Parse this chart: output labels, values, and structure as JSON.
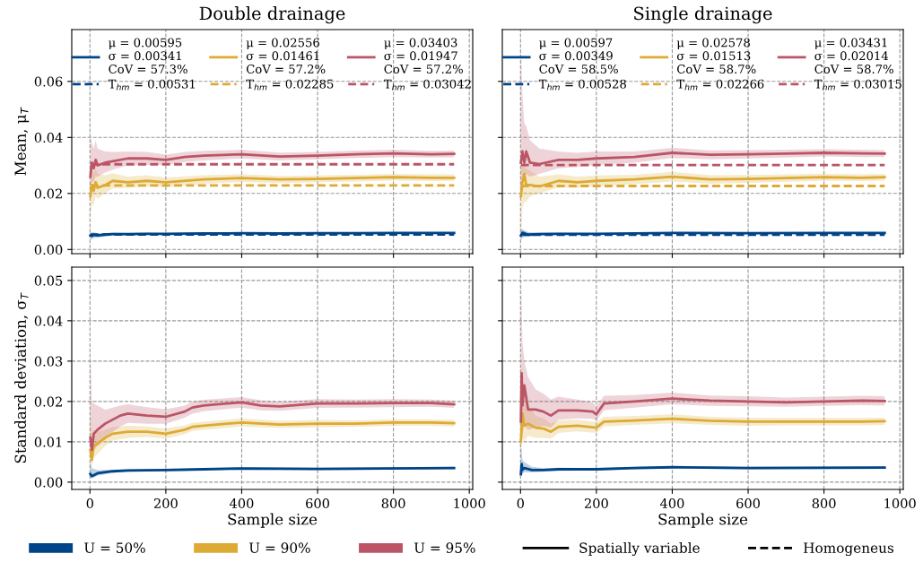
{
  "chart_data": [
    {
      "type": "line",
      "title": "Double drainage",
      "ylabel": "Mean, μ$_{T}$",
      "xlim": [
        -48,
        1009
      ],
      "xticks": [
        {
          "value": 0,
          "label": null
        },
        {
          "value": 200,
          "label": null
        },
        {
          "value": 400,
          "label": null
        },
        {
          "value": 600,
          "label": null
        },
        {
          "value": 800,
          "label": null
        },
        {
          "value": 1000,
          "label": null
        }
      ],
      "ylim": [
        -0.0015,
        0.0785
      ],
      "yticks": [
        {
          "value": 0,
          "label": "0.00"
        },
        {
          "value": 0.02,
          "label": "0.02"
        },
        {
          "value": 0.04,
          "label": "0.04"
        },
        {
          "value": 0.06,
          "label": "0.06"
        }
      ],
      "grid": true,
      "legend": "top",
      "tick_labels": "y",
      "series": [
        {
          "name": "μ = 0.00595\nσ = 0.00341\nCoV = 57.3%",
          "color": "#004488",
          "x": [
            1,
            5,
            10,
            20,
            40,
            60,
            100,
            150,
            200,
            300,
            400,
            500,
            600,
            700,
            800,
            900,
            960
          ],
          "values": [
            0.005,
            0.0048,
            0.0052,
            0.005,
            0.0053,
            0.0055,
            0.0055,
            0.0056,
            0.0056,
            0.0057,
            0.0058,
            0.0057,
            0.0058,
            0.0058,
            0.0059,
            0.0059,
            0.0059
          ],
          "lower": [
            0.0035,
            0.0036,
            0.0042,
            0.0042,
            0.0047,
            0.005,
            0.0051,
            0.0052,
            0.0053,
            0.0054,
            0.0055,
            0.0054,
            0.0055,
            0.0055,
            0.0056,
            0.0056,
            0.0056
          ],
          "upper": [
            0.0065,
            0.006,
            0.0062,
            0.0058,
            0.0059,
            0.006,
            0.0059,
            0.006,
            0.0059,
            0.006,
            0.0061,
            0.006,
            0.0061,
            0.0061,
            0.0062,
            0.0062,
            0.0062
          ]
        },
        {
          "name": "T$_{hm}$ = 0.00531",
          "color": "#004488",
          "line_style": "dashed",
          "x": [
            1,
            960
          ],
          "values": [
            0.00531,
            0.00531
          ]
        },
        {
          "name": "μ = 0.02556\nσ = 0.01461\nCoV = 57.2%",
          "color": "#DDAA33",
          "x": [
            1,
            5,
            10,
            15,
            20,
            40,
            60,
            100,
            150,
            200,
            300,
            400,
            500,
            600,
            700,
            800,
            900,
            960
          ],
          "values": [
            0.019,
            0.023,
            0.021,
            0.024,
            0.022,
            0.023,
            0.0245,
            0.024,
            0.0245,
            0.024,
            0.025,
            0.0255,
            0.025,
            0.0252,
            0.0255,
            0.0258,
            0.0256,
            0.0256
          ],
          "lower": [
            0.01,
            0.016,
            0.016,
            0.019,
            0.018,
            0.02,
            0.0218,
            0.022,
            0.0225,
            0.0223,
            0.0235,
            0.0241,
            0.0237,
            0.024,
            0.0243,
            0.0246,
            0.0244,
            0.0244
          ],
          "upper": [
            0.026,
            0.029,
            0.027,
            0.029,
            0.027,
            0.0265,
            0.0272,
            0.026,
            0.0265,
            0.0257,
            0.0265,
            0.0269,
            0.0263,
            0.0264,
            0.0267,
            0.027,
            0.0268,
            0.0268
          ]
        },
        {
          "name": "T$_{hm}$ = 0.02285",
          "color": "#DDAA33",
          "line_style": "dashed",
          "x": [
            1,
            960
          ],
          "values": [
            0.02285,
            0.02285
          ]
        },
        {
          "name": "μ = 0.03403\nσ = 0.01947\nCoV = 57.2%",
          "color": "#BB5566",
          "x": [
            1,
            5,
            10,
            15,
            20,
            40,
            60,
            100,
            150,
            200,
            250,
            300,
            400,
            500,
            600,
            700,
            800,
            900,
            960
          ],
          "values": [
            0.026,
            0.031,
            0.029,
            0.032,
            0.03,
            0.031,
            0.0315,
            0.0325,
            0.0325,
            0.032,
            0.033,
            0.0335,
            0.034,
            0.0332,
            0.0335,
            0.034,
            0.0343,
            0.034,
            0.0341
          ],
          "lower": [
            0.022,
            0.024,
            0.024,
            0.026,
            0.026,
            0.0275,
            0.0285,
            0.03,
            0.0302,
            0.0302,
            0.0312,
            0.0318,
            0.0325,
            0.0318,
            0.0322,
            0.0327,
            0.033,
            0.0328,
            0.0329
          ],
          "upper": [
            0.041,
            0.038,
            0.036,
            0.039,
            0.036,
            0.035,
            0.0348,
            0.035,
            0.0348,
            0.0339,
            0.0348,
            0.0352,
            0.0356,
            0.0346,
            0.0348,
            0.0353,
            0.0356,
            0.0352,
            0.0353
          ]
        },
        {
          "name": "T$_{hm}$ = 0.03042",
          "color": "#BB5566",
          "line_style": "dashed",
          "x": [
            1,
            960
          ],
          "values": [
            0.03042,
            0.03042
          ]
        }
      ]
    },
    {
      "type": "line",
      "title": "Single drainage",
      "xlim": [
        -48,
        1009
      ],
      "xticks": [
        {
          "value": 0,
          "label": null
        },
        {
          "value": 200,
          "label": null
        },
        {
          "value": 400,
          "label": null
        },
        {
          "value": 600,
          "label": null
        },
        {
          "value": 800,
          "label": null
        },
        {
          "value": 1000,
          "label": null
        }
      ],
      "ylim": [
        -0.0015,
        0.0785
      ],
      "yticks": [
        {
          "value": 0,
          "label": null
        },
        {
          "value": 0.02,
          "label": null
        },
        {
          "value": 0.04,
          "label": null
        },
        {
          "value": 0.06,
          "label": null
        }
      ],
      "grid": true,
      "legend": "top",
      "tick_labels": false,
      "series": [
        {
          "name": "μ = 0.00597\nσ = 0.00349\nCoV = 58.5%",
          "color": "#004488",
          "x": [
            1,
            5,
            10,
            20,
            50,
            100,
            200,
            400,
            600,
            800,
            960
          ],
          "values": [
            0.005,
            0.006,
            0.0058,
            0.0053,
            0.0055,
            0.0056,
            0.0056,
            0.0059,
            0.0058,
            0.0059,
            0.0059
          ],
          "lower": [
            0.0035,
            0.0042,
            0.0045,
            0.0045,
            0.005,
            0.0052,
            0.0053,
            0.0056,
            0.0055,
            0.0056,
            0.0056
          ],
          "upper": [
            0.0075,
            0.0072,
            0.0068,
            0.0062,
            0.006,
            0.006,
            0.0059,
            0.0062,
            0.0061,
            0.0062,
            0.0062
          ]
        },
        {
          "name": "T$_{hm}$ = 0.00528",
          "color": "#004488",
          "line_style": "dashed",
          "x": [
            1,
            960
          ],
          "values": [
            0.00528,
            0.00528
          ]
        },
        {
          "name": "μ = 0.02578\nσ = 0.01513\nCoV = 58.7%",
          "color": "#DDAA33",
          "x": [
            1,
            5,
            10,
            15,
            25,
            50,
            100,
            150,
            200,
            300,
            400,
            500,
            600,
            700,
            800,
            900,
            960
          ],
          "values": [
            0.019,
            0.024,
            0.027,
            0.023,
            0.023,
            0.0225,
            0.0245,
            0.024,
            0.0245,
            0.025,
            0.026,
            0.025,
            0.0252,
            0.0255,
            0.0258,
            0.0256,
            0.0258
          ],
          "lower": [
            0.0,
            0.015,
            0.017,
            0.017,
            0.019,
            0.02,
            0.0222,
            0.022,
            0.0226,
            0.0233,
            0.0243,
            0.0235,
            0.0238,
            0.0242,
            0.0245,
            0.0244,
            0.0246
          ],
          "upper": [
            0.032,
            0.031,
            0.032,
            0.029,
            0.028,
            0.026,
            0.0268,
            0.026,
            0.0264,
            0.0267,
            0.0277,
            0.0265,
            0.0266,
            0.0268,
            0.0271,
            0.0268,
            0.027
          ]
        },
        {
          "name": "T$_{hm}$ = 0.02266",
          "color": "#DDAA33",
          "line_style": "dashed",
          "x": [
            1,
            960
          ],
          "values": [
            0.02266,
            0.02266
          ]
        },
        {
          "name": "μ = 0.03431\nσ = 0.02014\nCoV = 58.7%",
          "color": "#BB5566",
          "x": [
            1,
            5,
            10,
            15,
            25,
            50,
            100,
            150,
            200,
            300,
            400,
            500,
            600,
            700,
            800,
            900,
            960
          ],
          "values": [
            0.031,
            0.035,
            0.031,
            0.035,
            0.031,
            0.0305,
            0.032,
            0.032,
            0.0325,
            0.033,
            0.0345,
            0.0338,
            0.034,
            0.0342,
            0.0345,
            0.0343,
            0.0342
          ],
          "lower": [
            0.022,
            0.026,
            0.024,
            0.027,
            0.026,
            0.027,
            0.029,
            0.0295,
            0.0302,
            0.031,
            0.0327,
            0.0322,
            0.0325,
            0.0328,
            0.0332,
            0.033,
            0.033
          ],
          "upper": [
            0.0745,
            0.055,
            0.045,
            0.044,
            0.039,
            0.036,
            0.035,
            0.0345,
            0.035,
            0.035,
            0.0363,
            0.0354,
            0.0355,
            0.0356,
            0.0358,
            0.0356,
            0.0355
          ]
        },
        {
          "name": "T$_{hm}$ = 0.03015",
          "color": "#BB5566",
          "line_style": "dashed",
          "x": [
            1,
            960
          ],
          "values": [
            0.03015,
            0.03015
          ]
        }
      ]
    },
    {
      "type": "line",
      "xlabel": "Sample size",
      "ylabel": "Standard deviation, σ$_{T}$",
      "xlim": [
        -48,
        1009
      ],
      "xticks": [
        0,
        200,
        400,
        600,
        800,
        1000
      ],
      "ylim": [
        -0.0018,
        0.0533
      ],
      "yticks": [
        {
          "value": 0,
          "label": "0.00"
        },
        {
          "value": 0.01,
          "label": "0.01"
        },
        {
          "value": 0.02,
          "label": "0.02"
        },
        {
          "value": 0.03,
          "label": "0.03"
        },
        {
          "value": 0.04,
          "label": "0.04"
        },
        {
          "value": 0.05,
          "label": "0.05"
        }
      ],
      "grid": true,
      "series": [
        {
          "color": "#004488",
          "x": [
            1,
            5,
            20,
            60,
            100,
            200,
            300,
            400,
            600,
            960
          ],
          "values": [
            0.002,
            0.0015,
            0.0022,
            0.0027,
            0.0029,
            0.003,
            0.0032,
            0.0034,
            0.0033,
            0.0035
          ],
          "lower": [
            0.001,
            0.001,
            0.0016,
            0.0023,
            0.0026,
            0.0027,
            0.0029,
            0.0031,
            0.003,
            0.0032
          ],
          "upper": [
            0.005,
            0.0035,
            0.003,
            0.0031,
            0.0032,
            0.0033,
            0.0035,
            0.0037,
            0.0036,
            0.0038
          ]
        },
        {
          "color": "#DDAA33",
          "x": [
            1,
            5,
            10,
            20,
            40,
            60,
            100,
            150,
            200,
            250,
            270,
            300,
            400,
            500,
            600,
            700,
            800,
            900,
            960
          ],
          "values": [
            0.008,
            0.0055,
            0.009,
            0.0095,
            0.011,
            0.012,
            0.0125,
            0.0125,
            0.012,
            0.013,
            0.0137,
            0.014,
            0.0148,
            0.0143,
            0.0145,
            0.0145,
            0.0148,
            0.0148,
            0.0146
          ],
          "lower": [
            0.005,
            0.004,
            0.006,
            0.007,
            0.009,
            0.0103,
            0.011,
            0.0112,
            0.0108,
            0.0119,
            0.0127,
            0.013,
            0.0138,
            0.0134,
            0.0136,
            0.0137,
            0.014,
            0.014,
            0.0138
          ],
          "upper": [
            0.018,
            0.012,
            0.013,
            0.0125,
            0.013,
            0.0137,
            0.014,
            0.0138,
            0.0133,
            0.0141,
            0.0147,
            0.015,
            0.0158,
            0.0152,
            0.0154,
            0.0153,
            0.0156,
            0.0156,
            0.0154
          ]
        },
        {
          "color": "#BB5566",
          "x": [
            1,
            5,
            10,
            20,
            40,
            60,
            80,
            100,
            150,
            200,
            250,
            270,
            300,
            400,
            450,
            500,
            600,
            700,
            800,
            900,
            960
          ],
          "values": [
            0.011,
            0.008,
            0.012,
            0.013,
            0.0145,
            0.0155,
            0.0165,
            0.017,
            0.0165,
            0.0162,
            0.0175,
            0.0185,
            0.019,
            0.0198,
            0.019,
            0.0188,
            0.0195,
            0.0195,
            0.0196,
            0.0196,
            0.0193
          ],
          "lower": [
            0.006,
            0.006,
            0.008,
            0.009,
            0.011,
            0.0125,
            0.0138,
            0.0147,
            0.0145,
            0.0145,
            0.016,
            0.017,
            0.0176,
            0.0185,
            0.0178,
            0.0177,
            0.0184,
            0.0185,
            0.0186,
            0.0187,
            0.0184
          ],
          "upper": [
            0.0335,
            0.02,
            0.0195,
            0.019,
            0.018,
            0.0185,
            0.019,
            0.0193,
            0.0186,
            0.0181,
            0.019,
            0.02,
            0.0204,
            0.0211,
            0.0203,
            0.0199,
            0.0206,
            0.0205,
            0.0206,
            0.0205,
            0.0202
          ]
        }
      ]
    },
    {
      "type": "line",
      "xlabel": "Sample size",
      "xlim": [
        -48,
        1009
      ],
      "xticks": [
        0,
        200,
        400,
        600,
        800,
        1000
      ],
      "ylim": [
        -0.0018,
        0.0533
      ],
      "yticks": [
        {
          "value": 0,
          "label": null
        },
        {
          "value": 0.01,
          "label": null
        },
        {
          "value": 0.02,
          "label": null
        },
        {
          "value": 0.03,
          "label": null
        },
        {
          "value": 0.04,
          "label": null
        },
        {
          "value": 0.05,
          "label": null
        }
      ],
      "grid": true,
      "tick_labels": "x",
      "series": [
        {
          "color": "#004488",
          "x": [
            1,
            3,
            5,
            10,
            30,
            60,
            100,
            200,
            300,
            400,
            600,
            960
          ],
          "values": [
            0.002,
            0.0045,
            0.003,
            0.0035,
            0.003,
            0.003,
            0.0032,
            0.0032,
            0.0035,
            0.0037,
            0.0035,
            0.0036
          ],
          "lower": [
            0.001,
            0.002,
            0.002,
            0.0025,
            0.0024,
            0.0026,
            0.0028,
            0.0029,
            0.0032,
            0.0034,
            0.0032,
            0.0033
          ],
          "upper": [
            0.009,
            0.008,
            0.0055,
            0.005,
            0.0038,
            0.0035,
            0.0036,
            0.0035,
            0.0038,
            0.004,
            0.0038,
            0.0039
          ]
        },
        {
          "color": "#DDAA33",
          "x": [
            1,
            5,
            10,
            20,
            40,
            60,
            80,
            100,
            150,
            200,
            220,
            300,
            400,
            500,
            600,
            700,
            800,
            900,
            960
          ],
          "values": [
            0.01,
            0.017,
            0.014,
            0.0145,
            0.0135,
            0.0133,
            0.0125,
            0.0137,
            0.014,
            0.0135,
            0.015,
            0.0153,
            0.0157,
            0.0152,
            0.015,
            0.015,
            0.015,
            0.015,
            0.0151
          ],
          "lower": [
            0.009,
            0.011,
            0.01,
            0.0115,
            0.011,
            0.011,
            0.0108,
            0.0122,
            0.0126,
            0.0122,
            0.0138,
            0.0142,
            0.0146,
            0.0142,
            0.014,
            0.0141,
            0.0141,
            0.0141,
            0.0142
          ],
          "upper": [
            0.03,
            0.025,
            0.02,
            0.019,
            0.0165,
            0.0158,
            0.0145,
            0.0153,
            0.0155,
            0.0149,
            0.0162,
            0.0164,
            0.0168,
            0.0162,
            0.016,
            0.0159,
            0.0159,
            0.0159,
            0.016
          ]
        },
        {
          "color": "#BB5566",
          "x": [
            1,
            3,
            5,
            10,
            20,
            40,
            60,
            80,
            100,
            150,
            190,
            200,
            220,
            300,
            400,
            500,
            600,
            700,
            800,
            900,
            960
          ],
          "values": [
            0.015,
            0.027,
            0.019,
            0.024,
            0.018,
            0.018,
            0.0175,
            0.0165,
            0.0178,
            0.0178,
            0.0175,
            0.0168,
            0.0195,
            0.02,
            0.0207,
            0.0202,
            0.02,
            0.0198,
            0.02,
            0.0202,
            0.0201
          ],
          "lower": [
            0.006,
            0.01,
            0.012,
            0.014,
            0.013,
            0.0135,
            0.014,
            0.0135,
            0.0155,
            0.0158,
            0.0157,
            0.0152,
            0.0178,
            0.0185,
            0.0193,
            0.0189,
            0.0188,
            0.0187,
            0.0189,
            0.0191,
            0.019
          ],
          "upper": [
            0.053,
            0.045,
            0.035,
            0.03,
            0.026,
            0.023,
            0.022,
            0.0205,
            0.0212,
            0.0205,
            0.0198,
            0.0188,
            0.0214,
            0.0216,
            0.0222,
            0.0215,
            0.0213,
            0.021,
            0.0212,
            0.0214,
            0.0213
          ]
        }
      ]
    },
    {
      "type": "other",
      "legend": "bottom",
      "series": [
        {
          "name": "U = 50%",
          "color": "#004488"
        },
        {
          "name": "U = 90%",
          "color": "#DDAA33"
        },
        {
          "name": "U = 95%",
          "color": "#BB5566"
        },
        {
          "name": "Spatially variable",
          "color": "#000000",
          "line_style": "solid"
        },
        {
          "name": "Homogeneus",
          "color": "#000000",
          "line_style": "dashed"
        }
      ]
    }
  ]
}
